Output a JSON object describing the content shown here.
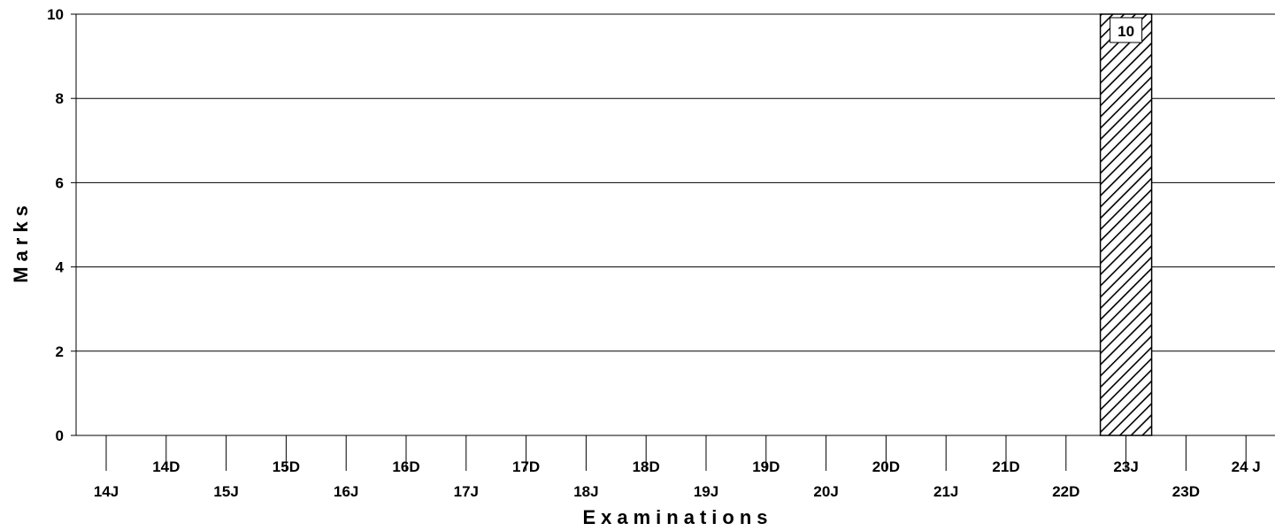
{
  "chart_data": {
    "type": "bar",
    "title": "",
    "xlabel": "Examinations",
    "ylabel": "Marks",
    "ylim": [
      0,
      10
    ],
    "yticks": [
      0,
      2,
      4,
      6,
      8,
      10
    ],
    "grid": true,
    "categories": [
      "14J",
      "14D",
      "15J",
      "15D",
      "16J",
      "16D",
      "17J",
      "17D",
      "18J",
      "18D",
      "19J",
      "19D",
      "20J",
      "20D",
      "21J",
      "21D",
      "22D",
      "23J",
      "23D",
      "24 J"
    ],
    "values": [
      0,
      0,
      0,
      0,
      0,
      0,
      0,
      0,
      0,
      0,
      0,
      0,
      0,
      0,
      0,
      0,
      0,
      10,
      0,
      0
    ],
    "data_labels": [
      "",
      "",
      "",
      "",
      "",
      "",
      "",
      "",
      "",
      "",
      "",
      "",
      "",
      "",
      "",
      "",
      "",
      "10",
      "",
      ""
    ],
    "bar_pattern": "diagonal-hatch",
    "colors": {
      "bar_stroke": "#000000",
      "hatch": "#000000",
      "grid": "#000000"
    }
  }
}
